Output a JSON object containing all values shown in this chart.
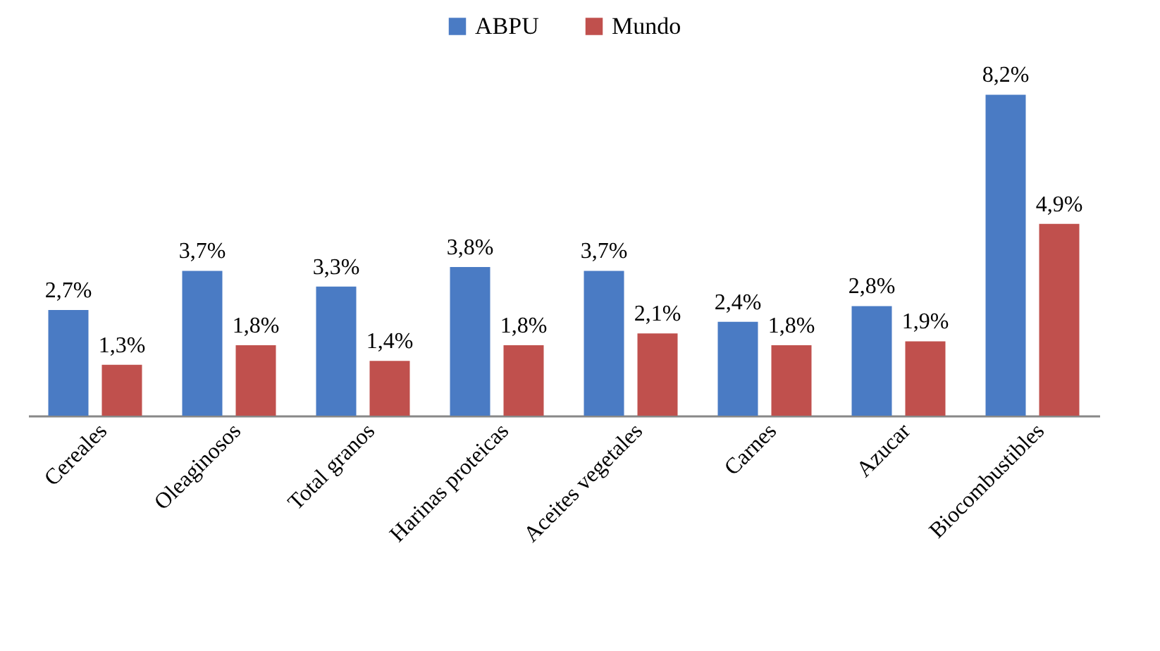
{
  "chart_data": {
    "type": "bar",
    "categories": [
      "Cereales",
      "Oleaginosos",
      "Total granos",
      "Harinas proteicas",
      "Aceites vegetales",
      "Carnes",
      "Azucar",
      "Biocombustibles"
    ],
    "series": [
      {
        "name": "ABPU",
        "color": "#4a7bc4",
        "values": [
          2.7,
          3.7,
          3.3,
          3.8,
          3.7,
          2.4,
          2.8,
          8.2
        ],
        "value_labels": [
          "2,7%",
          "3,7%",
          "3,3%",
          "3,8%",
          "3,7%",
          "2,4%",
          "2,8%",
          "8,2%"
        ]
      },
      {
        "name": "Mundo",
        "color": "#c0504d",
        "values": [
          1.3,
          1.8,
          1.4,
          1.8,
          2.1,
          1.8,
          1.9,
          4.9
        ],
        "value_labels": [
          "1,3%",
          "1,8%",
          "1,4%",
          "1,8%",
          "2,1%",
          "1,8%",
          "1,9%",
          "4,9%"
        ]
      }
    ],
    "tick_labels": "x",
    "legend": "top"
  }
}
